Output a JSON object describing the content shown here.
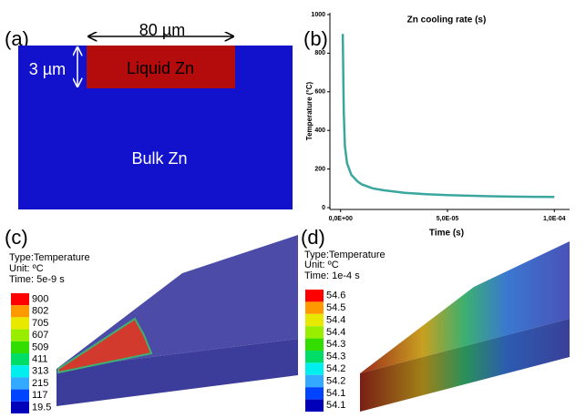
{
  "panel_a": {
    "label": "(a)",
    "width_label": "80 µm",
    "depth_label": "3 µm",
    "liquid_label": "Liquid Zn",
    "bulk_label": "Bulk Zn"
  },
  "panel_b": {
    "label": "(b)"
  },
  "chart_data": {
    "type": "line",
    "title": "Zn cooling rate (s)",
    "x_label": "Time (s)",
    "y_label": "Temperature (°C)",
    "x": [
      1e-06,
      1.5e-06,
      2e-06,
      3e-06,
      5e-06,
      8e-06,
      1e-05,
      1.5e-05,
      2e-05,
      3e-05,
      4e-05,
      5e-05,
      6e-05,
      7e-05,
      8e-05,
      9e-05,
      0.0001
    ],
    "values": [
      900,
      500,
      320,
      230,
      170,
      135,
      120,
      100,
      90,
      77,
      70,
      65,
      62,
      59,
      57,
      56,
      55
    ],
    "color": "#3aa79f",
    "xlim": [
      -5e-06,
      0.000105
    ],
    "xticks": [
      {
        "value": 0,
        "label": "0,0E+00"
      },
      {
        "value": 5e-05,
        "label": "5,0E-05"
      },
      {
        "value": 0.0001,
        "label": "1,0E-04"
      }
    ],
    "ylim": [
      0,
      1000
    ],
    "yticks": [
      0,
      200,
      400,
      600,
      800,
      1000
    ]
  },
  "panel_c": {
    "label": "(c)",
    "type_line": "Type:Temperature",
    "unit_line": "Unit: ºC",
    "time_line": "Time: 5e-9 s",
    "legend": [
      "900",
      "802",
      "705",
      "607",
      "509",
      "411",
      "313",
      "215",
      "117",
      "19.5"
    ],
    "colors": [
      "#ff0000",
      "#ff9900",
      "#e8e800",
      "#99ee00",
      "#33dd00",
      "#00dd66",
      "#00eeee",
      "#33aaff",
      "#0044ff",
      "#0000bb"
    ]
  },
  "panel_d": {
    "label": "(d)",
    "type_line": "Type:Temperature",
    "unit_line": "Unit: ºC",
    "time_line": "Time: 1e-4 s",
    "legend": [
      "54.6",
      "54.5",
      "54.4",
      "54.4",
      "54.3",
      "54.3",
      "54.2",
      "54.2",
      "54.1",
      "54.1"
    ],
    "colors": [
      "#ff0000",
      "#ff9900",
      "#e8e800",
      "#99ee00",
      "#33dd00",
      "#00dd66",
      "#00eeee",
      "#33aaff",
      "#0044ff",
      "#0000bb"
    ]
  }
}
